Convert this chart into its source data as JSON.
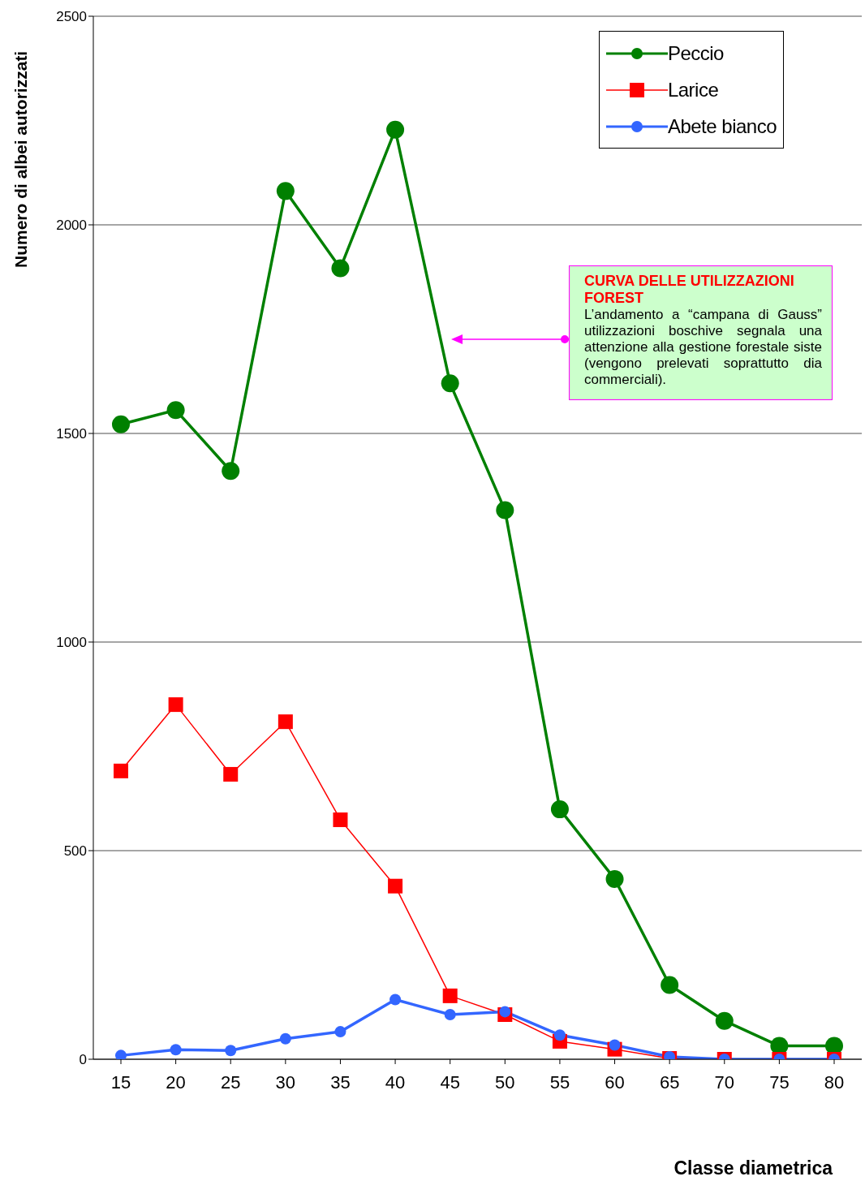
{
  "chart_data": {
    "type": "line",
    "xlabel": "Classe diametrica",
    "ylabel": "Numero di albei autorizzati",
    "categories": [
      "15",
      "20",
      "25",
      "30",
      "35",
      "40",
      "45",
      "50",
      "55",
      "60",
      "65",
      "70",
      "75",
      "80"
    ],
    "series": [
      {
        "name": "Peccio",
        "color": "#008000",
        "marker": "circle",
        "values": [
          1522,
          1556,
          1410,
          2081,
          1896,
          2228,
          1620,
          1316,
          599,
          432,
          178,
          92,
          32,
          32
        ]
      },
      {
        "name": "Larice",
        "color": "#ff0000",
        "marker": "square",
        "values": [
          691,
          850,
          683,
          809,
          574,
          415,
          152,
          107,
          43,
          24,
          2,
          0,
          0,
          0
        ]
      },
      {
        "name": "Abete bianco",
        "color": "#3366ff",
        "marker": "circle",
        "values": [
          9,
          23,
          21,
          49,
          66,
          143,
          107,
          114,
          58,
          34,
          6,
          0,
          0,
          0
        ]
      }
    ],
    "ylim": [
      0,
      2500
    ],
    "yticks": [
      0,
      500,
      1000,
      1500,
      2000,
      2500
    ],
    "grid": "y",
    "legend": "top right",
    "annotations": [
      "CURVA DELLE UTILIZZAZIONI FOREST",
      "L’andamento a “campana di Gauss” utilizzazioni boschive segnala una attenzione alla gestione forestale siste (vengono prelevati soprattutto dia commerciali)."
    ]
  }
}
